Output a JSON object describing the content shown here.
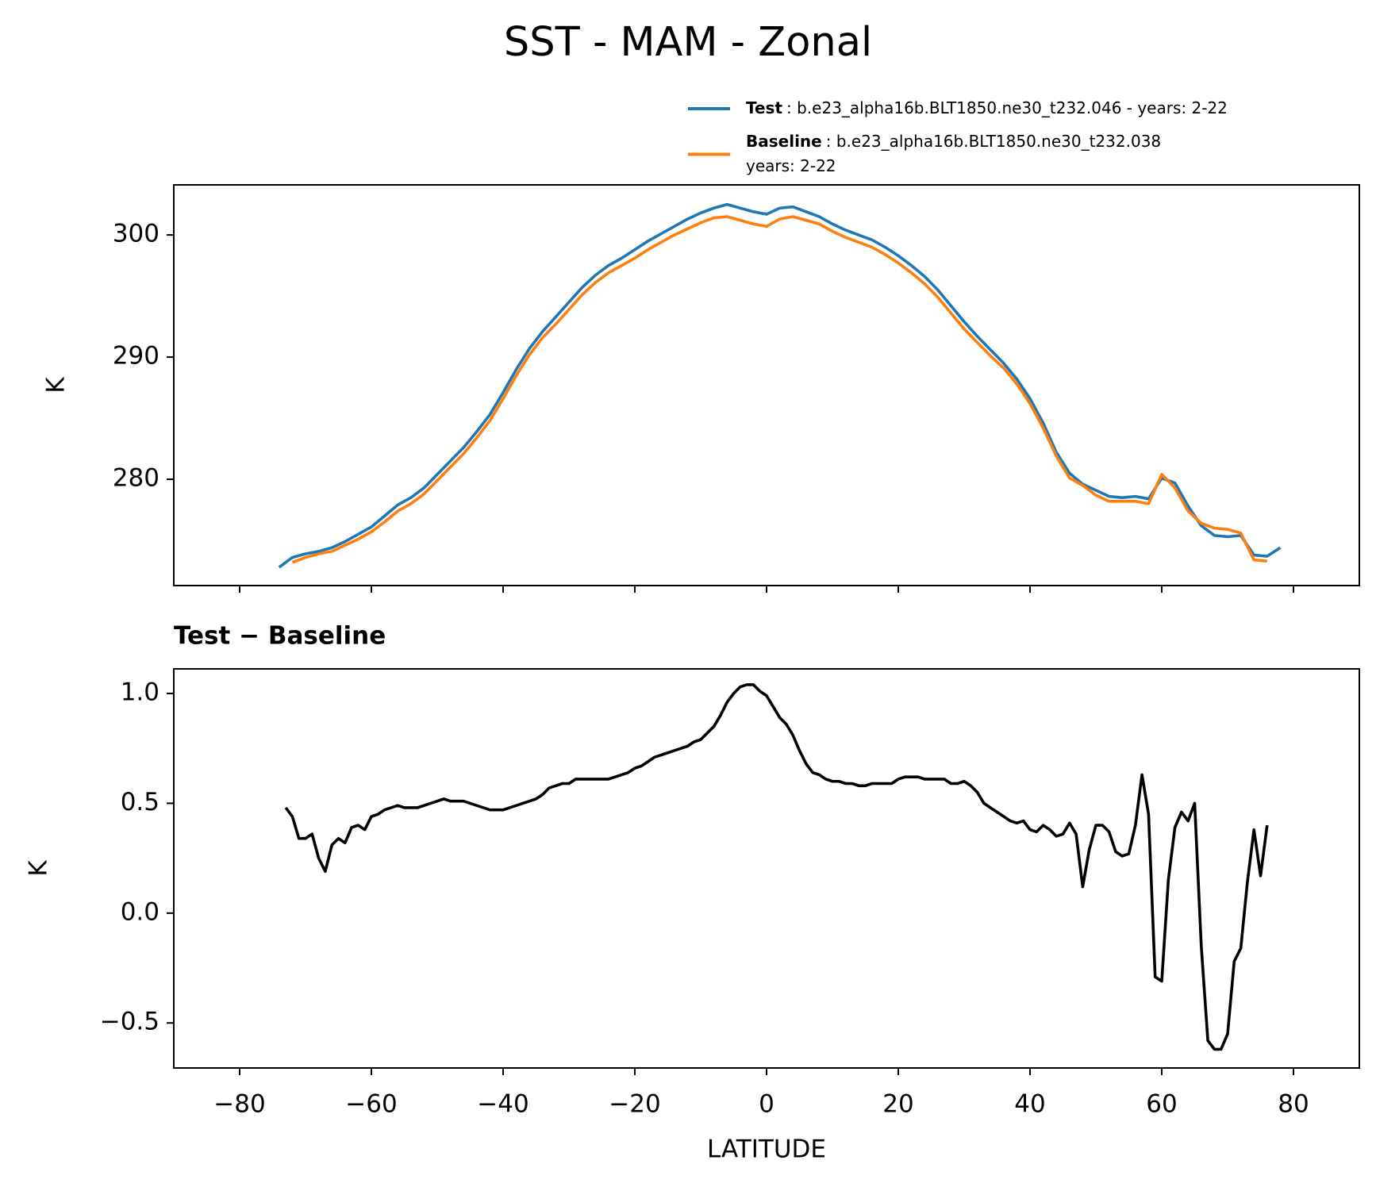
{
  "title": "SST - MAM - Zonal",
  "chart_data": [
    {
      "type": "line",
      "ylabel": "K",
      "legend": "top-right",
      "xlim": [
        -90,
        90
      ],
      "ylim": [
        271.3,
        304.1
      ],
      "xticks": [
        -80,
        -60,
        -40,
        -20,
        0,
        20,
        40,
        60,
        80
      ],
      "yticks": [
        280,
        290,
        300
      ],
      "x": [
        -74,
        -72,
        -70,
        -68,
        -66,
        -64,
        -62,
        -60,
        -58,
        -56,
        -54,
        -52,
        -50,
        -48,
        -46,
        -44,
        -42,
        -40,
        -38,
        -36,
        -34,
        -32,
        -30,
        -28,
        -26,
        -24,
        -22,
        -20,
        -18,
        -16,
        -14,
        -12,
        -10,
        -8,
        -6,
        -4,
        -2,
        0,
        2,
        4,
        6,
        8,
        10,
        12,
        14,
        16,
        18,
        20,
        22,
        24,
        26,
        28,
        30,
        32,
        34,
        36,
        38,
        40,
        42,
        44,
        46,
        48,
        50,
        52,
        54,
        56,
        58,
        60,
        62,
        64,
        66,
        68,
        70,
        72,
        74,
        76,
        78
      ],
      "series": [
        {
          "name": "Test",
          "label_lines": [
            ": b.e23_alpha16b.BLT1850.ne30_t232.046 - years: 2-22"
          ],
          "color": "#1f77b4",
          "values": [
            272.8,
            273.6,
            273.9,
            274.1,
            274.4,
            274.9,
            275.5,
            276.1,
            277.0,
            277.9,
            278.5,
            279.3,
            280.4,
            281.5,
            282.6,
            283.9,
            285.3,
            287.1,
            289.0,
            290.7,
            292.1,
            293.3,
            294.5,
            295.7,
            296.7,
            297.5,
            298.1,
            298.8,
            299.5,
            300.1,
            300.7,
            301.3,
            301.8,
            302.2,
            302.5,
            302.2,
            301.9,
            301.7,
            302.2,
            302.3,
            301.9,
            301.5,
            300.9,
            300.4,
            300.0,
            299.6,
            299.0,
            298.3,
            297.5,
            296.6,
            295.5,
            294.2,
            292.9,
            291.7,
            290.6,
            289.5,
            288.2,
            286.6,
            284.6,
            282.2,
            280.5,
            279.6,
            279.1,
            278.6,
            278.5,
            278.6,
            278.4,
            280.1,
            279.7,
            277.8,
            276.2,
            275.4,
            275.3,
            275.4,
            273.8,
            273.7,
            274.4
          ]
        },
        {
          "name": "Baseline",
          "label_lines": [
            ": b.e23_alpha16b.BLT1850.ne30_t232.038",
            "years: 2-22"
          ],
          "color": "#ff7f0e",
          "values": [
            null,
            273.2,
            273.6,
            273.9,
            274.1,
            274.6,
            275.1,
            275.7,
            276.5,
            277.4,
            278.0,
            278.8,
            279.9,
            281.0,
            282.1,
            283.4,
            284.8,
            286.6,
            288.5,
            290.2,
            291.6,
            292.7,
            293.9,
            295.1,
            296.1,
            296.9,
            297.5,
            298.1,
            298.8,
            299.4,
            300.0,
            300.5,
            301.0,
            301.4,
            301.5,
            301.2,
            300.9,
            300.7,
            301.3,
            301.5,
            301.2,
            300.9,
            300.3,
            299.8,
            299.4,
            299.0,
            298.4,
            297.7,
            296.9,
            296.0,
            294.9,
            293.6,
            292.3,
            291.2,
            290.1,
            289.1,
            287.8,
            286.2,
            284.2,
            281.9,
            280.1,
            279.5,
            278.7,
            278.2,
            278.2,
            278.2,
            278.0,
            280.4,
            279.3,
            277.4,
            276.4,
            276.0,
            275.9,
            275.6,
            273.4,
            273.3,
            null
          ]
        }
      ]
    },
    {
      "type": "line",
      "title": "Test − Baseline",
      "ylabel": "K",
      "xlabel": "LATITUDE",
      "xlim": [
        -90,
        90
      ],
      "ylim": [
        -0.705,
        1.112
      ],
      "xticks": [
        {
          "value": -80,
          "label": "−80"
        },
        {
          "value": -60,
          "label": "−60"
        },
        {
          "value": -40,
          "label": "−40"
        },
        {
          "value": -20,
          "label": "−20"
        },
        0,
        20,
        40,
        60,
        80
      ],
      "yticks": [
        {
          "value": -0.5,
          "label": "−0.5"
        },
        {
          "value": 0,
          "label": "0.0"
        },
        0.5,
        {
          "value": 1,
          "label": "1.0"
        }
      ],
      "x": [
        -73,
        -72,
        -71,
        -70,
        -69,
        -68,
        -67,
        -66,
        -65,
        -64,
        -63,
        -62,
        -61,
        -60,
        -59,
        -58,
        -57,
        -56,
        -55,
        -54,
        -53,
        -52,
        -51,
        -50,
        -49,
        -48,
        -47,
        -46,
        -45,
        -44,
        -43,
        -42,
        -41,
        -40,
        -39,
        -38,
        -37,
        -36,
        -35,
        -34,
        -33,
        -32,
        -31,
        -30,
        -29,
        -28,
        -27,
        -26,
        -25,
        -24,
        -23,
        -22,
        -21,
        -20,
        -19,
        -18,
        -17,
        -16,
        -15,
        -14,
        -13,
        -12,
        -11,
        -10,
        -9,
        -8,
        -7,
        -6,
        -5,
        -4,
        -3,
        -2,
        -1,
        0,
        1,
        2,
        3,
        4,
        5,
        6,
        7,
        8,
        9,
        10,
        11,
        12,
        13,
        14,
        15,
        16,
        17,
        18,
        19,
        20,
        21,
        22,
        23,
        24,
        25,
        26,
        27,
        28,
        29,
        30,
        31,
        32,
        33,
        34,
        35,
        36,
        37,
        38,
        39,
        40,
        41,
        42,
        43,
        44,
        45,
        46,
        47,
        48,
        49,
        50,
        51,
        52,
        53,
        54,
        55,
        56,
        57,
        58,
        59,
        60,
        61,
        62,
        63,
        64,
        65,
        66,
        67,
        68,
        69,
        70,
        71,
        72,
        73,
        74,
        75,
        76
      ],
      "series": [
        {
          "color": "#000000",
          "values": [
            0.48,
            0.44,
            0.34,
            0.34,
            0.36,
            0.25,
            0.19,
            0.31,
            0.34,
            0.32,
            0.39,
            0.4,
            0.38,
            0.44,
            0.45,
            0.47,
            0.48,
            0.49,
            0.48,
            0.48,
            0.48,
            0.49,
            0.5,
            0.51,
            0.52,
            0.51,
            0.51,
            0.51,
            0.5,
            0.49,
            0.48,
            0.47,
            0.47,
            0.47,
            0.48,
            0.49,
            0.5,
            0.51,
            0.52,
            0.54,
            0.57,
            0.58,
            0.59,
            0.59,
            0.61,
            0.61,
            0.61,
            0.61,
            0.61,
            0.61,
            0.62,
            0.63,
            0.64,
            0.66,
            0.67,
            0.69,
            0.71,
            0.72,
            0.73,
            0.74,
            0.75,
            0.76,
            0.78,
            0.79,
            0.82,
            0.85,
            0.9,
            0.96,
            1.0,
            1.03,
            1.04,
            1.04,
            1.01,
            0.99,
            0.94,
            0.89,
            0.86,
            0.81,
            0.74,
            0.68,
            0.64,
            0.63,
            0.61,
            0.6,
            0.6,
            0.59,
            0.59,
            0.58,
            0.58,
            0.59,
            0.59,
            0.59,
            0.59,
            0.61,
            0.62,
            0.62,
            0.62,
            0.61,
            0.61,
            0.61,
            0.61,
            0.59,
            0.59,
            0.6,
            0.58,
            0.55,
            0.5,
            0.48,
            0.46,
            0.44,
            0.42,
            0.41,
            0.42,
            0.38,
            0.37,
            0.4,
            0.38,
            0.35,
            0.36,
            0.41,
            0.36,
            0.12,
            0.29,
            0.4,
            0.4,
            0.37,
            0.28,
            0.26,
            0.27,
            0.4,
            0.63,
            0.45,
            -0.29,
            -0.31,
            0.15,
            0.39,
            0.46,
            0.42,
            0.5,
            -0.15,
            -0.58,
            -0.62,
            -0.62,
            -0.55,
            -0.22,
            -0.16,
            0.14,
            0.38,
            0.17,
            0.4
          ]
        }
      ]
    }
  ]
}
